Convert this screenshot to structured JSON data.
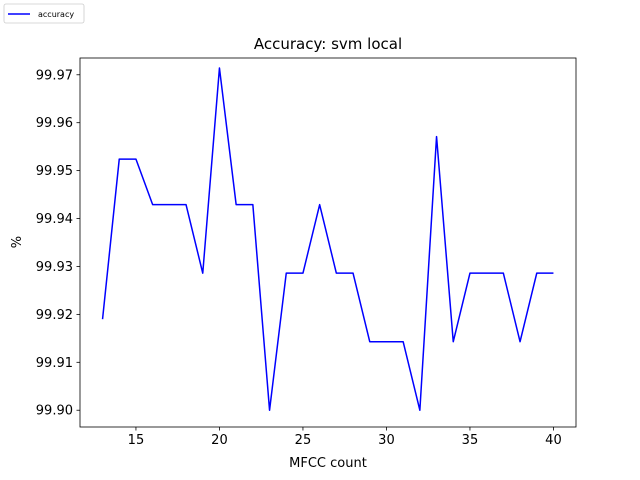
{
  "chart_data": {
    "type": "line",
    "title": "Accuracy: svm local",
    "xlabel": "MFCC count",
    "ylabel": "%",
    "xlim": [
      11.65,
      41.35
    ],
    "ylim": [
      99.8965,
      99.9735
    ],
    "xticks": [
      {
        "value": 15,
        "label": "15"
      },
      {
        "value": 20,
        "label": "20"
      },
      {
        "value": 25,
        "label": "25"
      },
      {
        "value": 30,
        "label": "30"
      },
      {
        "value": 35,
        "label": "35"
      },
      {
        "value": 40,
        "label": "40"
      }
    ],
    "yticks": [
      {
        "value": 99.9,
        "label": "99.90"
      },
      {
        "value": 99.91,
        "label": "99.91"
      },
      {
        "value": 99.92,
        "label": "99.92"
      },
      {
        "value": 99.93,
        "label": "99.93"
      },
      {
        "value": 99.94,
        "label": "99.94"
      },
      {
        "value": 99.95,
        "label": "99.95"
      },
      {
        "value": 99.96,
        "label": "99.96"
      },
      {
        "value": 99.97,
        "label": "99.97"
      }
    ],
    "grid": false,
    "legend_position": "top-left outside",
    "series": [
      {
        "name": "accuracy",
        "color": "#0000ff",
        "x": [
          13,
          14,
          15,
          16,
          17,
          18,
          19,
          20,
          21,
          22,
          23,
          24,
          25,
          26,
          27,
          28,
          29,
          30,
          31,
          32,
          33,
          34,
          35,
          36,
          37,
          38,
          39,
          40
        ],
        "y": [
          99.919,
          99.9524,
          99.9524,
          99.9429,
          99.9429,
          99.9429,
          99.9286,
          99.9714,
          99.9429,
          99.9429,
          99.9,
          99.9286,
          99.9286,
          99.9429,
          99.9286,
          99.9286,
          99.9143,
          99.9143,
          99.9143,
          99.9,
          99.9571,
          99.9143,
          99.9286,
          99.9286,
          99.9286,
          99.9143,
          99.9286,
          99.9286
        ]
      }
    ]
  }
}
